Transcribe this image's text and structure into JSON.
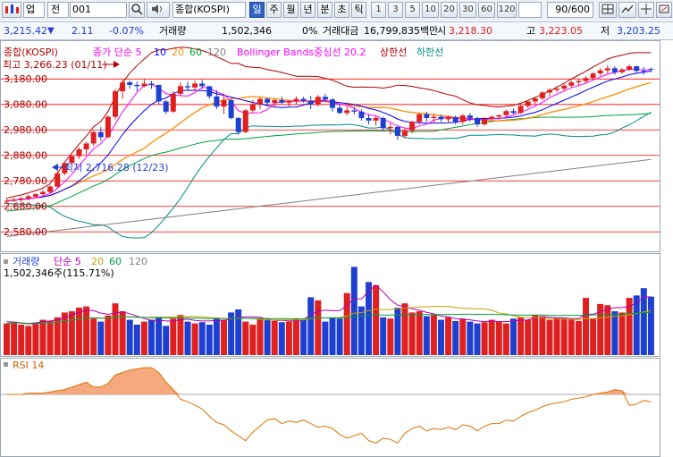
{
  "toolbar": {
    "chart_icon_label": "",
    "mode": "업",
    "market": "전",
    "code": "001",
    "name": "종합(KOSPI)",
    "periods": [
      "일",
      "주",
      "월",
      "년",
      "분",
      "초",
      "틱"
    ],
    "intervals": [
      "1",
      "3",
      "5",
      "10",
      "20",
      "30",
      "60",
      "120"
    ],
    "count": "90/600"
  },
  "quote": {
    "price": "3,215.42",
    "arrow": "▼",
    "change": "2.11",
    "change_pct": "-0.07%",
    "volume_label": "거래량",
    "volume": "1,502,346",
    "volume_pct": "0%",
    "amount_label": "거래대금",
    "amount": "16,799,835백만",
    "open_label": "시",
    "open": "3,218.30",
    "high_label": "고",
    "high": "3,223.05",
    "low_label": "저",
    "low": "3,203.25"
  },
  "price_panel": {
    "index_name": "종합(KOSPI)",
    "close_ma_label": "종가 단순 5",
    "ma_periods": [
      "10",
      "20",
      "60",
      "120"
    ],
    "bb_label": "Bollinger Bands중심선 20.2",
    "upper_label": "상한선",
    "lower_label": "하한선",
    "max_annotation": "최고 3,266.23 (01/11)",
    "min_annotation": "최저 2,716.28 (12/23)",
    "y_ticks": [
      "3,180.00",
      "3,080.00",
      "2,980.00",
      "2,880.00",
      "2,780.00",
      "2,680.00",
      "2,580.00"
    ],
    "colors": {
      "ma5": "#ff00ff",
      "ma10": "#0000ff",
      "ma20": "#ff8c00",
      "ma60": "#00a040",
      "ma120": "#808080",
      "bb": "#b00000",
      "up": "#e02020",
      "down": "#1e40d0",
      "hline": "#ff0000"
    }
  },
  "volume_panel": {
    "label": "거래량",
    "ma_label": "단순 5",
    "ma_periods": [
      "20",
      "60",
      "120"
    ],
    "current": "1,502,346주(115.71%)"
  },
  "rsi_panel": {
    "label": "RSI 14"
  },
  "chart_data": [
    {
      "type": "candlestick",
      "title": "종합(KOSPI)",
      "ylim": [
        2530,
        3260
      ],
      "candles": [
        [
          2700,
          2710,
          2690,
          2700
        ],
        [
          2700,
          2712,
          2695,
          2705
        ],
        [
          2705,
          2716,
          2695,
          2710
        ],
        [
          2710,
          2725,
          2702,
          2718
        ],
        [
          2716,
          2730,
          2714,
          2726
        ],
        [
          2726,
          2742,
          2720,
          2735
        ],
        [
          2735,
          2762,
          2730,
          2756
        ],
        [
          2756,
          2815,
          2750,
          2808
        ],
        [
          2808,
          2855,
          2800,
          2848
        ],
        [
          2848,
          2882,
          2840,
          2875
        ],
        [
          2875,
          2910,
          2865,
          2902
        ],
        [
          2902,
          2932,
          2880,
          2925
        ],
        [
          2925,
          2975,
          2915,
          2970
        ],
        [
          2970,
          2990,
          2935,
          2950
        ],
        [
          2950,
          3035,
          2945,
          3030
        ],
        [
          3030,
          3140,
          3020,
          3130
        ],
        [
          3130,
          3175,
          3100,
          3165
        ],
        [
          3165,
          3172,
          3140,
          3155
        ],
        [
          3155,
          3168,
          3130,
          3150
        ],
        [
          3150,
          3180,
          3145,
          3160
        ],
        [
          3160,
          3170,
          3140,
          3155
        ],
        [
          3155,
          3150,
          3080,
          3090
        ],
        [
          3090,
          3095,
          3040,
          3050
        ],
        [
          3050,
          3130,
          3045,
          3120
        ],
        [
          3120,
          3165,
          3110,
          3150
        ],
        [
          3150,
          3168,
          3135,
          3145
        ],
        [
          3145,
          3172,
          3130,
          3160
        ],
        [
          3160,
          3175,
          3140,
          3150
        ],
        [
          3150,
          3145,
          3100,
          3110
        ],
        [
          3110,
          3135,
          3060,
          3070
        ],
        [
          3070,
          3120,
          3040,
          3095
        ],
        [
          3095,
          3100,
          3020,
          3025
        ],
        [
          3025,
          3030,
          2960,
          2970
        ],
        [
          2970,
          3060,
          2965,
          3055
        ],
        [
          3055,
          3095,
          3045,
          3080
        ],
        [
          3080,
          3105,
          3060,
          3100
        ],
        [
          3100,
          3105,
          3070,
          3085
        ],
        [
          3085,
          3100,
          3065,
          3095
        ],
        [
          3095,
          3110,
          3080,
          3085
        ],
        [
          3085,
          3095,
          3070,
          3090
        ],
        [
          3090,
          3110,
          3080,
          3100
        ],
        [
          3100,
          3108,
          3085,
          3092
        ],
        [
          3092,
          3112,
          3060,
          3078
        ],
        [
          3078,
          3115,
          3070,
          3108
        ],
        [
          3108,
          3120,
          3090,
          3098
        ],
        [
          3098,
          3103,
          3050,
          3065
        ],
        [
          3065,
          3080,
          3040,
          3045
        ],
        [
          3045,
          3070,
          3035,
          3055
        ],
        [
          3055,
          3068,
          3040,
          3050
        ],
        [
          3050,
          3058,
          3015,
          3025
        ],
        [
          3025,
          3040,
          3000,
          3015
        ],
        [
          3015,
          3035,
          2995,
          3025
        ],
        [
          3025,
          3030,
          2975,
          2985
        ],
        [
          2985,
          3005,
          2960,
          2990
        ],
        [
          2990,
          2995,
          2940,
          2955
        ],
        [
          2955,
          2985,
          2945,
          2975
        ],
        [
          2975,
          3015,
          2965,
          3010
        ],
        [
          3010,
          3045,
          3000,
          3040
        ],
        [
          3040,
          3050,
          3010,
          3025
        ],
        [
          3025,
          3040,
          3005,
          3030
        ],
        [
          3030,
          3038,
          3010,
          3020
        ],
        [
          3020,
          3035,
          3005,
          3028
        ],
        [
          3028,
          3035,
          3000,
          3010
        ],
        [
          3010,
          3040,
          3000,
          3035
        ],
        [
          3035,
          3045,
          3010,
          3025
        ],
        [
          3025,
          3030,
          2990,
          3000
        ],
        [
          3000,
          3028,
          2995,
          3022
        ],
        [
          3022,
          3035,
          3015,
          3030
        ],
        [
          3030,
          3038,
          3020,
          3036
        ],
        [
          3036,
          3058,
          3030,
          3052
        ],
        [
          3052,
          3062,
          3040,
          3045
        ],
        [
          3045,
          3078,
          3040,
          3072
        ],
        [
          3072,
          3095,
          3065,
          3090
        ],
        [
          3090,
          3108,
          3080,
          3102
        ],
        [
          3102,
          3130,
          3095,
          3125
        ],
        [
          3125,
          3142,
          3110,
          3135
        ],
        [
          3135,
          3150,
          3125,
          3140
        ],
        [
          3140,
          3160,
          3130,
          3152
        ],
        [
          3152,
          3172,
          3145,
          3165
        ],
        [
          3165,
          3180,
          3150,
          3170
        ],
        [
          3170,
          3190,
          3160,
          3182
        ],
        [
          3182,
          3205,
          3175,
          3200
        ],
        [
          3200,
          3220,
          3190,
          3212
        ],
        [
          3212,
          3232,
          3200,
          3220
        ],
        [
          3220,
          3228,
          3195,
          3205
        ],
        [
          3205,
          3222,
          3198,
          3215
        ],
        [
          3215,
          3235,
          3210,
          3228
        ],
        [
          3228,
          3230,
          3200,
          3210
        ],
        [
          3210,
          3226,
          3195,
          3208
        ],
        [
          3218,
          3223,
          3203,
          3215
        ]
      ],
      "max": {
        "value": 3266.23,
        "date": "01/11"
      },
      "min": {
        "value": 2716.28,
        "date": "12/23"
      }
    },
    {
      "type": "bar",
      "title": "거래량",
      "values": [
        52,
        55,
        50,
        48,
        53,
        58,
        56,
        62,
        70,
        72,
        78,
        80,
        60,
        55,
        65,
        85,
        72,
        58,
        50,
        55,
        58,
        62,
        48,
        60,
        66,
        55,
        52,
        54,
        50,
        60,
        58,
        70,
        75,
        55,
        50,
        60,
        58,
        56,
        54,
        55,
        60,
        58,
        95,
        90,
        55,
        62,
        60,
        102,
        145,
        80,
        120,
        115,
        62,
        60,
        78,
        85,
        70,
        72,
        64,
        66,
        58,
        62,
        56,
        60,
        55,
        52,
        54,
        58,
        55,
        52,
        60,
        62,
        58,
        66,
        64,
        58,
        62,
        60,
        58,
        56,
        94,
        60,
        84,
        82,
        72,
        70,
        94,
        98,
        110,
        96
      ],
      "ma_values": [
        55,
        54,
        53,
        52,
        53,
        55,
        56,
        58,
        61,
        66,
        70,
        74,
        73,
        69,
        67,
        69,
        71,
        68,
        64,
        60,
        57,
        57,
        56,
        56,
        58,
        59,
        57,
        56,
        56,
        57,
        57,
        59,
        62,
        63,
        63,
        62,
        59,
        57,
        57,
        56,
        56,
        58,
        66,
        72,
        74,
        73,
        73,
        82,
        93,
        92,
        105,
        115,
        104,
        91,
        82,
        80,
        76,
        74,
        70,
        68,
        64,
        63,
        60,
        59,
        58,
        56,
        55,
        56,
        55,
        55,
        56,
        57,
        58,
        61,
        63,
        62,
        61,
        61,
        60,
        60,
        67,
        67,
        71,
        75,
        78,
        78,
        80,
        86,
        95,
        96
      ]
    },
    {
      "type": "line",
      "title": "RSI 14",
      "ylim": [
        0,
        100
      ],
      "values": [
        70,
        70,
        70,
        71,
        71,
        71,
        72,
        73,
        74,
        76,
        78,
        80,
        76,
        76,
        79,
        86,
        88,
        90,
        91,
        92,
        92,
        88,
        80,
        74,
        66,
        64,
        61,
        58,
        52,
        47,
        45,
        40,
        36,
        32,
        39,
        44,
        49,
        50,
        46,
        48,
        47,
        49,
        46,
        43,
        44,
        42,
        37,
        34,
        36,
        38,
        32,
        30,
        34,
        33,
        30,
        38,
        42,
        44,
        40,
        42,
        41,
        43,
        41,
        45,
        44,
        40,
        44,
        46,
        46,
        49,
        48,
        52,
        55,
        57,
        60,
        62,
        63,
        64,
        66,
        67,
        68,
        70,
        71,
        72,
        74,
        73,
        61,
        62,
        65,
        64
      ]
    }
  ]
}
